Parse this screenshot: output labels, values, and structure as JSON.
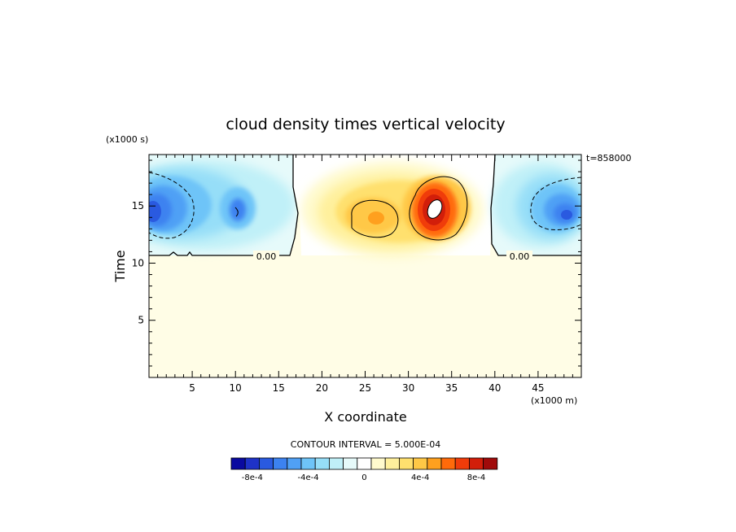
{
  "chart_data": {
    "type": "heatmap",
    "title": "cloud density times vertical velocity",
    "xlabel": "X coordinate",
    "ylabel": "Time",
    "x_unit": "(x1000 m)",
    "y_unit": "(x1000 s)",
    "timestamp": "t=858000",
    "xlim": [
      0,
      50
    ],
    "ylim": [
      0,
      19.5
    ],
    "x_ticks": [
      5,
      10,
      15,
      20,
      25,
      30,
      35,
      40,
      45
    ],
    "y_ticks": [
      5,
      10,
      15
    ],
    "contour_interval_label": "CONTOUR INTERVAL = 5.000E-04",
    "zero_contour_labels": [
      "0.00",
      "0.00"
    ],
    "background_color": "#fffde6",
    "colorbar": {
      "colors": [
        "#0a0aa0",
        "#1e32c8",
        "#2a5ae0",
        "#3c82f0",
        "#50a0f5",
        "#6ec4f8",
        "#96def8",
        "#c0f0f8",
        "#e6fafa",
        "#ffffff",
        "#fffacd",
        "#fff09c",
        "#ffe06e",
        "#ffc846",
        "#ffa01e",
        "#ff6a0a",
        "#f03c0a",
        "#d21e0a",
        "#a00a0a"
      ],
      "tick_labels": [
        "-8e-4",
        "-4e-4",
        "0",
        "4e-4",
        "8e-4"
      ],
      "tick_positions": [
        1.5,
        5.5,
        9.5,
        13.5,
        17.5
      ]
    },
    "features": [
      {
        "name": "left downdraft",
        "sign": "negative",
        "x_center": 2,
        "y_center": 15,
        "peak": -0.0008
      },
      {
        "name": "left secondary downdraft",
        "sign": "negative",
        "x_center": 10.3,
        "y_center": 14.7,
        "peak": -0.0006
      },
      {
        "name": "central updraft",
        "sign": "positive",
        "x_center": 26,
        "y_center": 14.3,
        "peak": 0.0006
      },
      {
        "name": "main updraft core",
        "sign": "positive",
        "x_center": 32.8,
        "y_center": 14.8,
        "peak": 0.001
      },
      {
        "name": "right downdraft",
        "sign": "negative",
        "x_center": 46,
        "y_center": 14.8,
        "peak": -0.0008
      }
    ]
  }
}
